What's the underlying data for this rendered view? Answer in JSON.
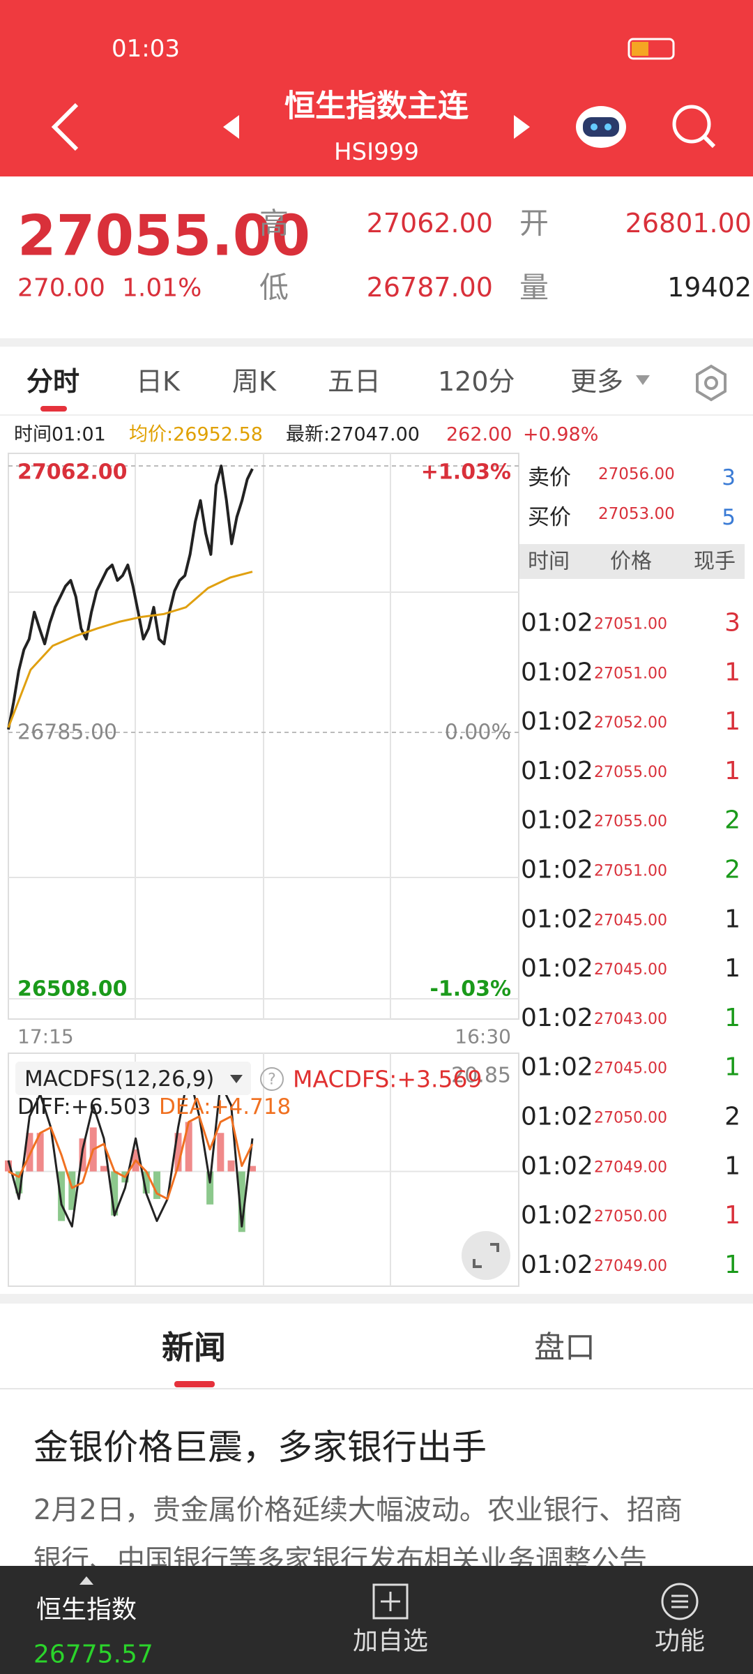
{
  "status_bar": {
    "time": "01:03"
  },
  "header": {
    "title": "恒生指数主连",
    "code": "HSI999"
  },
  "quote": {
    "price": "27055.00",
    "change": "270.00",
    "change_pct": "1.01%",
    "high_label": "高",
    "high": "27062.00",
    "open_label": "开",
    "open": "26801.00",
    "low_label": "低",
    "low": "26787.00",
    "volume_label": "量",
    "volume": "19402"
  },
  "tabs": [
    "分时",
    "日K",
    "周K",
    "五日",
    "120分",
    "更多"
  ],
  "info": {
    "time": "时间01:01",
    "avg": "均价:26952.58",
    "last": "最新:27047.00",
    "change": "262.00",
    "change_pct": "+0.98%"
  },
  "chart": {
    "type": "line",
    "ylim": [
      26508,
      27062
    ],
    "yticks": [
      {
        "value": 27062,
        "label": "27062.00"
      },
      {
        "value": 26785,
        "label": "26785.00"
      },
      {
        "value": 26508,
        "label": "26508.00"
      }
    ],
    "pct_labels": [
      "+1.03%",
      "0.00%",
      "-1.03%"
    ],
    "x_labels": [
      "17:15",
      "16:30"
    ],
    "series": [
      {
        "color": "#222222",
        "values": [
          26788,
          26816,
          26849,
          26871,
          26882,
          26910,
          26893,
          26877,
          26899,
          26915,
          26926,
          26937,
          26943,
          26926,
          26893,
          26882,
          26910,
          26932,
          26943,
          26954,
          26959,
          26943,
          26948,
          26959,
          26937,
          26910,
          26882,
          26893,
          26915,
          26882,
          26877,
          26910,
          26932,
          26943,
          26948,
          26970,
          27004,
          27026,
          26992,
          26970,
          27042,
          27062,
          27026,
          26981,
          27009,
          27026,
          27048,
          27059
        ]
      },
      {
        "color": "#e0a010",
        "values": [
          26790,
          26850,
          26875,
          26885,
          26893,
          26900,
          26905,
          26908,
          26915,
          26935,
          26946,
          26952
        ]
      }
    ],
    "macd": {
      "title": "MACDFS(12,26,9)",
      "value_label": "MACDFS:+3.569",
      "diff_label": "DIFF:+6.503",
      "dea_label": "DEA:+4.718",
      "ylim": [
        -20.85,
        20.85
      ],
      "yticks": [
        20.85
      ],
      "diff": [
        2,
        -5,
        10,
        14,
        8,
        -6,
        -10,
        4,
        12,
        6,
        -8,
        -3,
        6,
        -4,
        -9,
        -5,
        8,
        18,
        10,
        -2,
        16,
        12,
        -10,
        6
      ],
      "dea": [
        0,
        -1,
        3,
        7,
        8,
        3,
        -3,
        -2,
        4,
        5,
        0,
        -1,
        2,
        0,
        -4,
        -5,
        1,
        9,
        10,
        4,
        9,
        10,
        1,
        5
      ],
      "histogram": [
        2,
        -4,
        7,
        7,
        0,
        -9,
        -7,
        6,
        8,
        1,
        -8,
        -2,
        4,
        -4,
        -5,
        0,
        7,
        9,
        0,
        -6,
        7,
        2,
        -11,
        1
      ],
      "diff_color": "#222222",
      "dea_color": "#f07020",
      "up_color": "#f08a8a",
      "down_color": "#8cc88c"
    }
  },
  "order_book": {
    "ask_label": "卖价",
    "ask": "27056.00",
    "ask_qty": "3",
    "bid_label": "买价",
    "bid": "27053.00",
    "bid_qty": "5",
    "columns": [
      "时间",
      "价格",
      "现手"
    ],
    "trades": [
      {
        "time": "01:02",
        "price": "27051.00",
        "qty": "3",
        "color": "#d9303a"
      },
      {
        "time": "01:02",
        "price": "27051.00",
        "qty": "1",
        "color": "#d9303a"
      },
      {
        "time": "01:02",
        "price": "27052.00",
        "qty": "1",
        "color": "#d9303a"
      },
      {
        "time": "01:02",
        "price": "27055.00",
        "qty": "1",
        "color": "#d9303a"
      },
      {
        "time": "01:02",
        "price": "27055.00",
        "qty": "2",
        "color": "#1a9a1a"
      },
      {
        "time": "01:02",
        "price": "27051.00",
        "qty": "2",
        "color": "#1a9a1a"
      },
      {
        "time": "01:02",
        "price": "27045.00",
        "qty": "1",
        "color": "#222222"
      },
      {
        "time": "01:02",
        "price": "27045.00",
        "qty": "1",
        "color": "#222222"
      },
      {
        "time": "01:02",
        "price": "27043.00",
        "qty": "1",
        "color": "#1a9a1a"
      },
      {
        "time": "01:02",
        "price": "27045.00",
        "qty": "1",
        "color": "#1a9a1a"
      },
      {
        "time": "01:02",
        "price": "27050.00",
        "qty": "2",
        "color": "#222222"
      },
      {
        "time": "01:02",
        "price": "27049.00",
        "qty": "1",
        "color": "#222222"
      },
      {
        "time": "01:02",
        "price": "27050.00",
        "qty": "1",
        "color": "#d9303a"
      },
      {
        "time": "01:02",
        "price": "27049.00",
        "qty": "1",
        "color": "#1a9a1a"
      }
    ]
  },
  "news_tabs": [
    "新闻",
    "盘口"
  ],
  "article": {
    "headline": "金银价格巨震，多家银行出手",
    "lines": [
      "2月2日，贵金属价格延续大幅波动。农业银行、招商",
      "银行、中国银行等多家银行发布相关业务调整公告..."
    ]
  },
  "bottom_bar": {
    "index_name": "恒生指数",
    "index_value": "26775.57",
    "add": "加自选",
    "menu": "功能"
  }
}
